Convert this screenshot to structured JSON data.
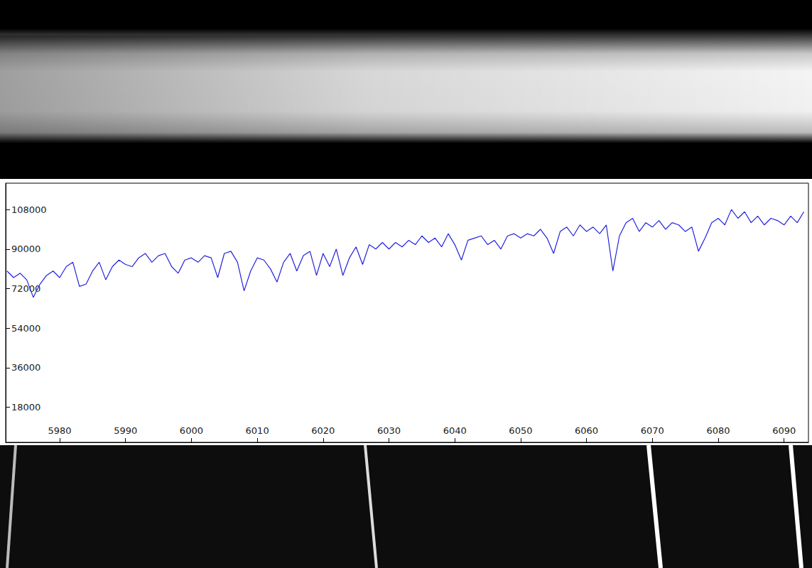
{
  "chart_data": {
    "type": "line",
    "color": "#2222dd",
    "grid": false,
    "xlim": [
      5971.8,
      6093.7
    ],
    "ylim": [
      2000,
      120000
    ],
    "xticks": [
      5980,
      5990,
      6000,
      6010,
      6020,
      6030,
      6040,
      6050,
      6060,
      6070,
      6080,
      6090
    ],
    "yticks": [
      18000,
      36000,
      54000,
      72000,
      90000,
      108000
    ],
    "x": [
      5972,
      5973,
      5974,
      5975,
      5976,
      5977,
      5978,
      5979,
      5980,
      5981,
      5982,
      5983,
      5984,
      5985,
      5986,
      5987,
      5988,
      5989,
      5990,
      5991,
      5992,
      5993,
      5994,
      5995,
      5996,
      5997,
      5998,
      5999,
      6000,
      6001,
      6002,
      6003,
      6004,
      6005,
      6006,
      6007,
      6008,
      6009,
      6010,
      6011,
      6012,
      6013,
      6014,
      6015,
      6016,
      6017,
      6018,
      6019,
      6020,
      6021,
      6022,
      6023,
      6024,
      6025,
      6026,
      6027,
      6028,
      6029,
      6030,
      6031,
      6032,
      6033,
      6034,
      6035,
      6036,
      6037,
      6038,
      6039,
      6040,
      6041,
      6042,
      6043,
      6044,
      6045,
      6046,
      6047,
      6048,
      6049,
      6050,
      6051,
      6052,
      6053,
      6054,
      6055,
      6056,
      6057,
      6058,
      6059,
      6060,
      6061,
      6062,
      6063,
      6064,
      6065,
      6066,
      6067,
      6068,
      6069,
      6070,
      6071,
      6072,
      6073,
      6074,
      6075,
      6076,
      6077,
      6078,
      6079,
      6080,
      6081,
      6082,
      6083,
      6084,
      6085,
      6086,
      6087,
      6088,
      6089,
      6090,
      6091,
      6092,
      6093
    ],
    "values": [
      80000,
      77000,
      79000,
      76000,
      68000,
      74000,
      78000,
      80000,
      77000,
      82000,
      84000,
      73000,
      74000,
      80000,
      84000,
      76000,
      82000,
      85000,
      83000,
      82000,
      86000,
      88000,
      84000,
      87000,
      88000,
      82000,
      79000,
      85000,
      86000,
      84000,
      87000,
      86000,
      77000,
      88000,
      89000,
      84000,
      71000,
      80000,
      86000,
      85000,
      81000,
      75000,
      84000,
      88000,
      80000,
      87000,
      89000,
      78000,
      88000,
      82000,
      90000,
      78000,
      86000,
      91000,
      83000,
      92000,
      90000,
      93000,
      90000,
      93000,
      91000,
      94000,
      92000,
      96000,
      93000,
      95000,
      91000,
      97000,
      92000,
      85000,
      94000,
      95000,
      96000,
      92000,
      94000,
      90000,
      96000,
      97000,
      95000,
      97000,
      96000,
      99000,
      95000,
      88000,
      98000,
      100000,
      96000,
      101000,
      98000,
      100000,
      97000,
      101000,
      80000,
      96000,
      102000,
      104000,
      98000,
      102000,
      100000,
      103000,
      99000,
      102000,
      101000,
      98000,
      100000,
      89000,
      95000,
      102000,
      104000,
      101000,
      108000,
      104000,
      107000,
      102000,
      105000,
      101000,
      104000,
      103000,
      101000,
      105000,
      102000,
      107000
    ]
  }
}
